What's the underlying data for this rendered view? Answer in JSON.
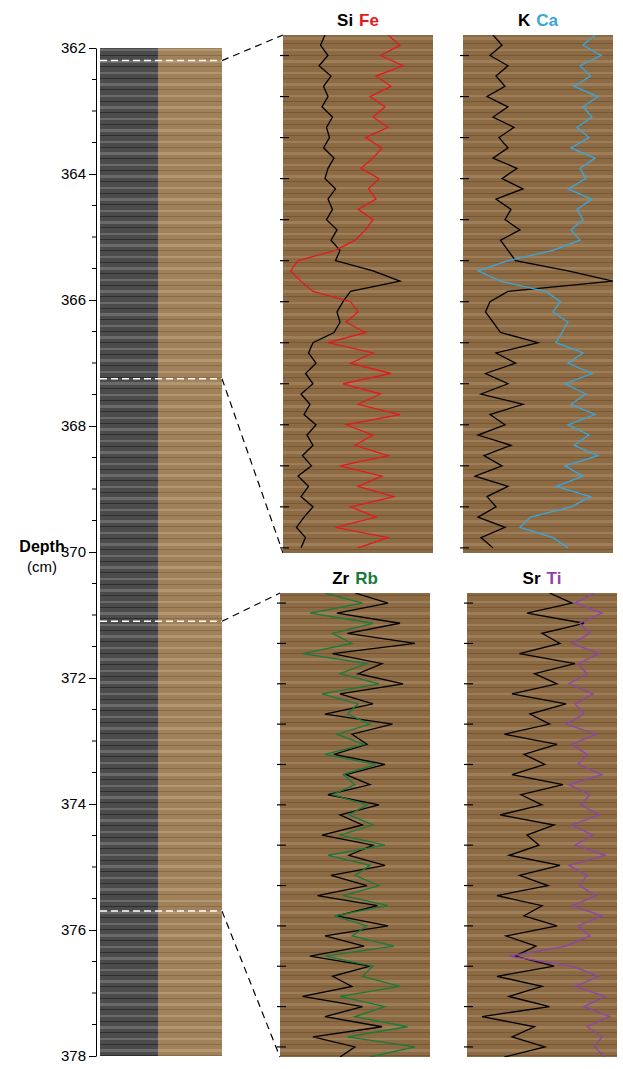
{
  "chart_data": {
    "type": "line",
    "y_label": "Depth",
    "y_unit": "(cm)",
    "ylim": [
      362,
      378
    ],
    "yticks": [
      362,
      364,
      366,
      368,
      370,
      372,
      374,
      376,
      378
    ],
    "minor_ticks": [
      362.5,
      363,
      363.5,
      364.5,
      365,
      365.5,
      366.5,
      367,
      367.5,
      368.5,
      369,
      369.5,
      370.5,
      371,
      371.5,
      372.5,
      373,
      373.5,
      374.5,
      375,
      375.5,
      376.5,
      377,
      377.5
    ],
    "xlim": [
      0,
      1
    ],
    "tick_labels": "y",
    "sections": [
      {
        "depth_range": [
          362.2,
          367.25
        ],
        "ticks": [
          362.4,
          362.8,
          363.2,
          363.6,
          364,
          364.4,
          364.8,
          365.2,
          365.6,
          366,
          366.4,
          366.8,
          367.2
        ],
        "depth": [
          362.2,
          362.3,
          362.4,
          362.5,
          362.6,
          362.7,
          362.8,
          362.9,
          363.0,
          363.1,
          363.2,
          363.3,
          363.4,
          363.5,
          363.6,
          363.7,
          363.8,
          363.9,
          364.0,
          364.1,
          364.2,
          364.3,
          364.4,
          364.5,
          364.6,
          364.7,
          364.8,
          364.9,
          365.0,
          365.1,
          365.2,
          365.3,
          365.4,
          365.5,
          365.6,
          365.7,
          365.8,
          365.9,
          366.0,
          366.1,
          366.2,
          366.3,
          366.4,
          366.5,
          366.6,
          366.7,
          366.8,
          366.9,
          367.0,
          367.1,
          367.2
        ],
        "panels": [
          {
            "series": [
              {
                "name": "Si",
                "color": "#000000",
                "values": [
                  0.28,
                  0.25,
                  0.3,
                  0.24,
                  0.32,
                  0.27,
                  0.3,
                  0.26,
                  0.33,
                  0.29,
                  0.31,
                  0.27,
                  0.34,
                  0.3,
                  0.28,
                  0.35,
                  0.3,
                  0.33,
                  0.29,
                  0.36,
                  0.32,
                  0.38,
                  0.35,
                  0.6,
                  0.78,
                  0.45,
                  0.4,
                  0.36,
                  0.38,
                  0.34,
                  0.2,
                  0.17,
                  0.22,
                  0.15,
                  0.2,
                  0.12,
                  0.18,
                  0.14,
                  0.22,
                  0.16,
                  0.2,
                  0.13,
                  0.19,
                  0.1,
                  0.17,
                  0.12,
                  0.2,
                  0.14,
                  0.09,
                  0.15,
                  0.12
                ]
              },
              {
                "name": "Fe",
                "color": "#e31a1c",
                "values": [
                  0.7,
                  0.78,
                  0.65,
                  0.8,
                  0.62,
                  0.72,
                  0.58,
                  0.68,
                  0.6,
                  0.7,
                  0.55,
                  0.66,
                  0.6,
                  0.52,
                  0.64,
                  0.57,
                  0.62,
                  0.5,
                  0.6,
                  0.55,
                  0.48,
                  0.35,
                  0.1,
                  0.05,
                  0.12,
                  0.2,
                  0.45,
                  0.5,
                  0.42,
                  0.55,
                  0.3,
                  0.6,
                  0.45,
                  0.72,
                  0.4,
                  0.65,
                  0.5,
                  0.78,
                  0.42,
                  0.6,
                  0.48,
                  0.7,
                  0.38,
                  0.66,
                  0.5,
                  0.74,
                  0.45,
                  0.62,
                  0.35,
                  0.7,
                  0.5
                ]
              }
            ]
          },
          {
            "series": [
              {
                "name": "K",
                "color": "#000000",
                "values": [
                  0.2,
                  0.26,
                  0.18,
                  0.3,
                  0.22,
                  0.28,
                  0.16,
                  0.3,
                  0.2,
                  0.34,
                  0.24,
                  0.3,
                  0.2,
                  0.36,
                  0.26,
                  0.4,
                  0.22,
                  0.32,
                  0.28,
                  0.38,
                  0.25,
                  0.3,
                  0.35,
                  0.7,
                  1.0,
                  0.3,
                  0.18,
                  0.15,
                  0.2,
                  0.25,
                  0.5,
                  0.22,
                  0.35,
                  0.15,
                  0.3,
                  0.12,
                  0.4,
                  0.18,
                  0.28,
                  0.1,
                  0.32,
                  0.14,
                  0.26,
                  0.08,
                  0.3,
                  0.16,
                  0.22,
                  0.1,
                  0.28,
                  0.12,
                  0.2
                ]
              },
              {
                "name": "Ca",
                "color": "#3aa6dd",
                "values": [
                  0.88,
                  0.8,
                  0.92,
                  0.78,
                  0.85,
                  0.74,
                  0.9,
                  0.8,
                  0.86,
                  0.76,
                  0.84,
                  0.72,
                  0.88,
                  0.78,
                  0.82,
                  0.7,
                  0.86,
                  0.76,
                  0.8,
                  0.72,
                  0.78,
                  0.6,
                  0.3,
                  0.1,
                  0.25,
                  0.55,
                  0.65,
                  0.6,
                  0.7,
                  0.66,
                  0.62,
                  0.8,
                  0.7,
                  0.86,
                  0.68,
                  0.82,
                  0.72,
                  0.88,
                  0.7,
                  0.84,
                  0.74,
                  0.9,
                  0.68,
                  0.8,
                  0.62,
                  0.85,
                  0.72,
                  0.45,
                  0.38,
                  0.6,
                  0.7
                ]
              }
            ]
          }
        ]
      },
      {
        "depth_range": [
          371.1,
          375.7
        ],
        "ticks": [
          371.2,
          371.6,
          372,
          372.4,
          372.8,
          373.2,
          373.6,
          374,
          374.4,
          374.8,
          375.2,
          375.6
        ],
        "depth": [
          371.1,
          371.2,
          371.3,
          371.4,
          371.5,
          371.6,
          371.7,
          371.8,
          371.9,
          372.0,
          372.1,
          372.2,
          372.3,
          372.4,
          372.5,
          372.6,
          372.7,
          372.8,
          372.9,
          373.0,
          373.1,
          373.2,
          373.3,
          373.4,
          373.5,
          373.6,
          373.7,
          373.8,
          373.9,
          374.0,
          374.1,
          374.2,
          374.3,
          374.4,
          374.5,
          374.6,
          374.7,
          374.8,
          374.9,
          375.0,
          375.1,
          375.2,
          375.3,
          375.4,
          375.5,
          375.6,
          375.7
        ],
        "panels": [
          {
            "series": [
              {
                "name": "Zr",
                "color": "#000000",
                "values": [
                  0.5,
                  0.72,
                  0.38,
                  0.8,
                  0.45,
                  0.9,
                  0.35,
                  0.68,
                  0.52,
                  0.82,
                  0.4,
                  0.62,
                  0.3,
                  0.75,
                  0.48,
                  0.58,
                  0.36,
                  0.7,
                  0.44,
                  0.6,
                  0.32,
                  0.66,
                  0.4,
                  0.55,
                  0.28,
                  0.62,
                  0.46,
                  0.7,
                  0.34,
                  0.58,
                  0.25,
                  0.65,
                  0.38,
                  0.72,
                  0.3,
                  0.56,
                  0.2,
                  0.6,
                  0.35,
                  0.48,
                  0.15,
                  0.55,
                  0.3,
                  0.68,
                  0.22,
                  0.5,
                  0.4
                ]
              },
              {
                "name": "Rb",
                "color": "#1a7a3a",
                "values": [
                  0.3,
                  0.55,
                  0.2,
                  0.62,
                  0.35,
                  0.48,
                  0.15,
                  0.58,
                  0.4,
                  0.66,
                  0.28,
                  0.52,
                  0.45,
                  0.6,
                  0.38,
                  0.56,
                  0.3,
                  0.64,
                  0.42,
                  0.5,
                  0.35,
                  0.58,
                  0.46,
                  0.62,
                  0.4,
                  0.7,
                  0.32,
                  0.6,
                  0.5,
                  0.66,
                  0.42,
                  0.72,
                  0.36,
                  0.58,
                  0.48,
                  0.76,
                  0.3,
                  0.62,
                  0.55,
                  0.8,
                  0.4,
                  0.7,
                  0.5,
                  0.85,
                  0.45,
                  0.9,
                  0.6
                ]
              }
            ]
          },
          {
            "series": [
              {
                "name": "Sr",
                "color": "#000000",
                "values": [
                  0.55,
                  0.7,
                  0.4,
                  0.78,
                  0.5,
                  0.62,
                  0.35,
                  0.72,
                  0.45,
                  0.6,
                  0.3,
                  0.66,
                  0.42,
                  0.55,
                  0.25,
                  0.6,
                  0.38,
                  0.52,
                  0.3,
                  0.64,
                  0.36,
                  0.5,
                  0.22,
                  0.58,
                  0.4,
                  0.48,
                  0.28,
                  0.62,
                  0.35,
                  0.54,
                  0.2,
                  0.5,
                  0.38,
                  0.6,
                  0.26,
                  0.46,
                  0.32,
                  0.58,
                  0.2,
                  0.5,
                  0.28,
                  0.55,
                  0.1,
                  0.45,
                  0.3,
                  0.52,
                  0.25
                ]
              },
              {
                "name": "Ti",
                "color": "#8e44ad",
                "values": [
                  0.85,
                  0.72,
                  0.9,
                  0.75,
                  0.82,
                  0.7,
                  0.88,
                  0.74,
                  0.8,
                  0.68,
                  0.84,
                  0.72,
                  0.78,
                  0.66,
                  0.86,
                  0.7,
                  0.8,
                  0.74,
                  0.9,
                  0.68,
                  0.82,
                  0.76,
                  0.88,
                  0.7,
                  0.84,
                  0.72,
                  0.92,
                  0.68,
                  0.8,
                  0.75,
                  0.86,
                  0.7,
                  0.9,
                  0.74,
                  0.82,
                  0.66,
                  0.28,
                  0.7,
                  0.88,
                  0.72,
                  0.92,
                  0.78,
                  0.95,
                  0.8,
                  0.9,
                  0.85,
                  0.92
                ]
              }
            ]
          }
        ]
      }
    ]
  }
}
